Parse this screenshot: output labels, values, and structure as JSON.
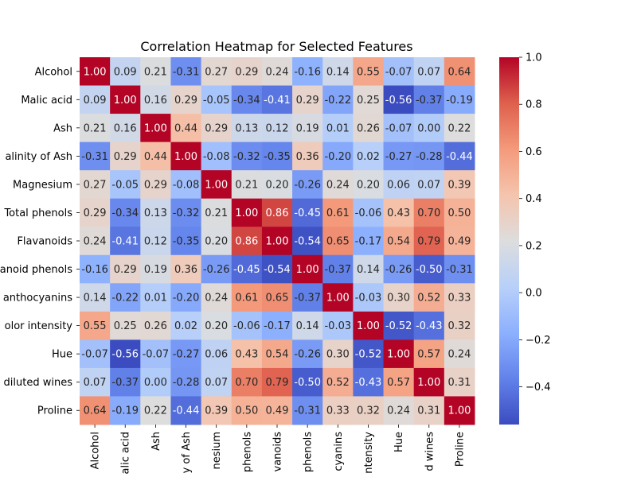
{
  "chart_data": {
    "type": "heatmap",
    "title": "Correlation Heatmap for Selected Features",
    "xlabel": "",
    "ylabel": "",
    "row_labels": [
      "Alcohol",
      "Malic acid",
      "Ash",
      "alinity of Ash",
      "Magnesium",
      "Total phenols",
      "Flavanoids",
      "anoid phenols",
      "anthocyanins",
      "olor intensity",
      "Hue",
      "diluted wines",
      "Proline"
    ],
    "col_labels": [
      "Alcohol",
      "alic acid",
      "Ash",
      "y of Ash",
      "nesium",
      "phenols",
      "vanoids",
      "phenols",
      "cyanins",
      "ntensity",
      "Hue",
      "d wines",
      "Proline"
    ],
    "values": [
      [
        1.0,
        0.09,
        0.21,
        -0.31,
        0.27,
        0.29,
        0.24,
        -0.16,
        0.14,
        0.55,
        -0.07,
        0.07,
        0.64
      ],
      [
        0.09,
        1.0,
        0.16,
        0.29,
        -0.05,
        -0.34,
        -0.41,
        0.29,
        -0.22,
        0.25,
        -0.56,
        -0.37,
        -0.19
      ],
      [
        0.21,
        0.16,
        1.0,
        0.44,
        0.29,
        0.13,
        0.12,
        0.19,
        0.01,
        0.26,
        -0.07,
        0.0,
        0.22
      ],
      [
        -0.31,
        0.29,
        0.44,
        1.0,
        -0.08,
        -0.32,
        -0.35,
        0.36,
        -0.2,
        0.02,
        -0.27,
        -0.28,
        -0.44
      ],
      [
        0.27,
        -0.05,
        0.29,
        -0.08,
        1.0,
        0.21,
        0.2,
        -0.26,
        0.24,
        0.2,
        0.06,
        0.07,
        0.39
      ],
      [
        0.29,
        -0.34,
        0.13,
        -0.32,
        0.21,
        1.0,
        0.86,
        -0.45,
        0.61,
        -0.06,
        0.43,
        0.7,
        0.5
      ],
      [
        0.24,
        -0.41,
        0.12,
        -0.35,
        0.2,
        0.86,
        1.0,
        -0.54,
        0.65,
        -0.17,
        0.54,
        0.79,
        0.49
      ],
      [
        -0.16,
        0.29,
        0.19,
        0.36,
        -0.26,
        -0.45,
        -0.54,
        1.0,
        -0.37,
        0.14,
        -0.26,
        -0.5,
        -0.31
      ],
      [
        0.14,
        -0.22,
        0.01,
        -0.2,
        0.24,
        0.61,
        0.65,
        -0.37,
        1.0,
        -0.03,
        0.3,
        0.52,
        0.33
      ],
      [
        0.55,
        0.25,
        0.26,
        0.02,
        0.2,
        -0.06,
        -0.17,
        0.14,
        -0.03,
        1.0,
        -0.52,
        -0.43,
        0.32
      ],
      [
        -0.07,
        -0.56,
        -0.07,
        -0.27,
        0.06,
        0.43,
        0.54,
        -0.26,
        0.3,
        -0.52,
        1.0,
        0.57,
        0.24
      ],
      [
        0.07,
        -0.37,
        0.0,
        -0.28,
        0.07,
        0.7,
        0.79,
        -0.5,
        0.52,
        -0.43,
        0.57,
        1.0,
        0.31
      ],
      [
        0.64,
        -0.19,
        0.22,
        -0.44,
        0.39,
        0.5,
        0.49,
        -0.31,
        0.33,
        0.32,
        0.24,
        0.31,
        1.0
      ]
    ],
    "value_format": "0.00",
    "colormap": "coolwarm",
    "colormap_colors": [
      "#3b4cc0",
      "#dddddd",
      "#b40426"
    ],
    "color_range": [
      -0.56,
      1.0
    ],
    "colorbar_ticks": [
      1.0,
      0.8,
      0.6,
      0.4,
      0.2,
      0.0,
      -0.2,
      -0.4
    ],
    "colorbar_tick_labels": [
      "1.0",
      "0.8",
      "0.6",
      "0.4",
      "0.2",
      "0.0",
      "−0.2",
      "−0.4"
    ],
    "colorbar_placement": "right"
  }
}
